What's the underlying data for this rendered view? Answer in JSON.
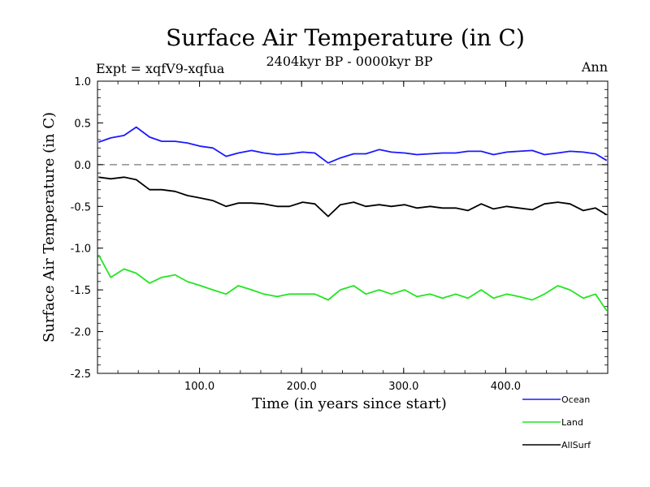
{
  "chart_data": {
    "type": "line",
    "title": "Surface Air Temperature (in C)",
    "experiment_label": "Expt = xqfV9-xqfua",
    "period_label": "2404kyr BP - 0000kyr BP",
    "season_label": "Ann",
    "xlabel": "Time (in years since start)",
    "ylabel": "Surface Air Temperature (in C)",
    "xlim": [
      0,
      500
    ],
    "ylim": [
      -2.5,
      1.0
    ],
    "xticks": [
      100,
      200,
      300,
      400
    ],
    "xtick_labels": [
      "100.0",
      "200.0",
      "300.0",
      "400.0"
    ],
    "yticks": [
      -2.5,
      -2.0,
      -1.5,
      -1.0,
      -0.5,
      0.0,
      0.5,
      1.0
    ],
    "ytick_labels": [
      "-2.5",
      "-2.0",
      "-1.5",
      "-1.0",
      "-0.5",
      "0.0",
      "0.5",
      "1.0"
    ],
    "zero_line": {
      "value": 0.0,
      "style": "dashed",
      "color": "#777777"
    },
    "series": [
      {
        "name": "Ocean",
        "color": "#1a1aff",
        "x": [
          1,
          13,
          26,
          38,
          51,
          63,
          76,
          88,
          101,
          113,
          126,
          138,
          151,
          163,
          176,
          188,
          201,
          213,
          226,
          238,
          251,
          263,
          276,
          288,
          301,
          313,
          326,
          338,
          351,
          363,
          376,
          388,
          401,
          413,
          426,
          438,
          451,
          463,
          476,
          488,
          499
        ],
        "values": [
          0.27,
          0.32,
          0.35,
          0.45,
          0.33,
          0.28,
          0.28,
          0.26,
          0.22,
          0.2,
          0.1,
          0.14,
          0.17,
          0.14,
          0.12,
          0.13,
          0.15,
          0.14,
          0.02,
          0.08,
          0.13,
          0.13,
          0.18,
          0.15,
          0.14,
          0.12,
          0.13,
          0.14,
          0.14,
          0.16,
          0.16,
          0.12,
          0.15,
          0.16,
          0.17,
          0.12,
          0.14,
          0.16,
          0.15,
          0.13,
          0.05
        ]
      },
      {
        "name": "Land",
        "color": "#22e622",
        "x": [
          1,
          13,
          26,
          38,
          51,
          63,
          76,
          88,
          101,
          113,
          126,
          138,
          151,
          163,
          176,
          188,
          201,
          213,
          226,
          238,
          251,
          263,
          276,
          288,
          301,
          313,
          326,
          338,
          351,
          363,
          376,
          388,
          401,
          413,
          426,
          438,
          451,
          463,
          476,
          488,
          499
        ],
        "values": [
          -1.08,
          -1.35,
          -1.25,
          -1.3,
          -1.42,
          -1.35,
          -1.32,
          -1.4,
          -1.45,
          -1.5,
          -1.55,
          -1.45,
          -1.5,
          -1.55,
          -1.58,
          -1.55,
          -1.55,
          -1.55,
          -1.62,
          -1.5,
          -1.45,
          -1.55,
          -1.5,
          -1.55,
          -1.5,
          -1.58,
          -1.55,
          -1.6,
          -1.55,
          -1.6,
          -1.5,
          -1.6,
          -1.55,
          -1.58,
          -1.62,
          -1.55,
          -1.45,
          -1.5,
          -1.6,
          -1.55,
          -1.75
        ]
      },
      {
        "name": "AllSurf",
        "color": "#000000",
        "x": [
          1,
          13,
          26,
          38,
          51,
          63,
          76,
          88,
          101,
          113,
          126,
          138,
          151,
          163,
          176,
          188,
          201,
          213,
          226,
          238,
          251,
          263,
          276,
          288,
          301,
          313,
          326,
          338,
          351,
          363,
          376,
          388,
          401,
          413,
          426,
          438,
          451,
          463,
          476,
          488,
          499
        ],
        "values": [
          -0.15,
          -0.17,
          -0.15,
          -0.18,
          -0.3,
          -0.3,
          -0.32,
          -0.37,
          -0.4,
          -0.43,
          -0.5,
          -0.46,
          -0.46,
          -0.47,
          -0.5,
          -0.5,
          -0.45,
          -0.47,
          -0.62,
          -0.48,
          -0.45,
          -0.5,
          -0.48,
          -0.5,
          -0.48,
          -0.52,
          -0.5,
          -0.52,
          -0.52,
          -0.55,
          -0.47,
          -0.53,
          -0.5,
          -0.52,
          -0.54,
          -0.47,
          -0.45,
          -0.47,
          -0.55,
          -0.52,
          -0.6
        ]
      }
    ],
    "legend_position": "bottom-right"
  }
}
